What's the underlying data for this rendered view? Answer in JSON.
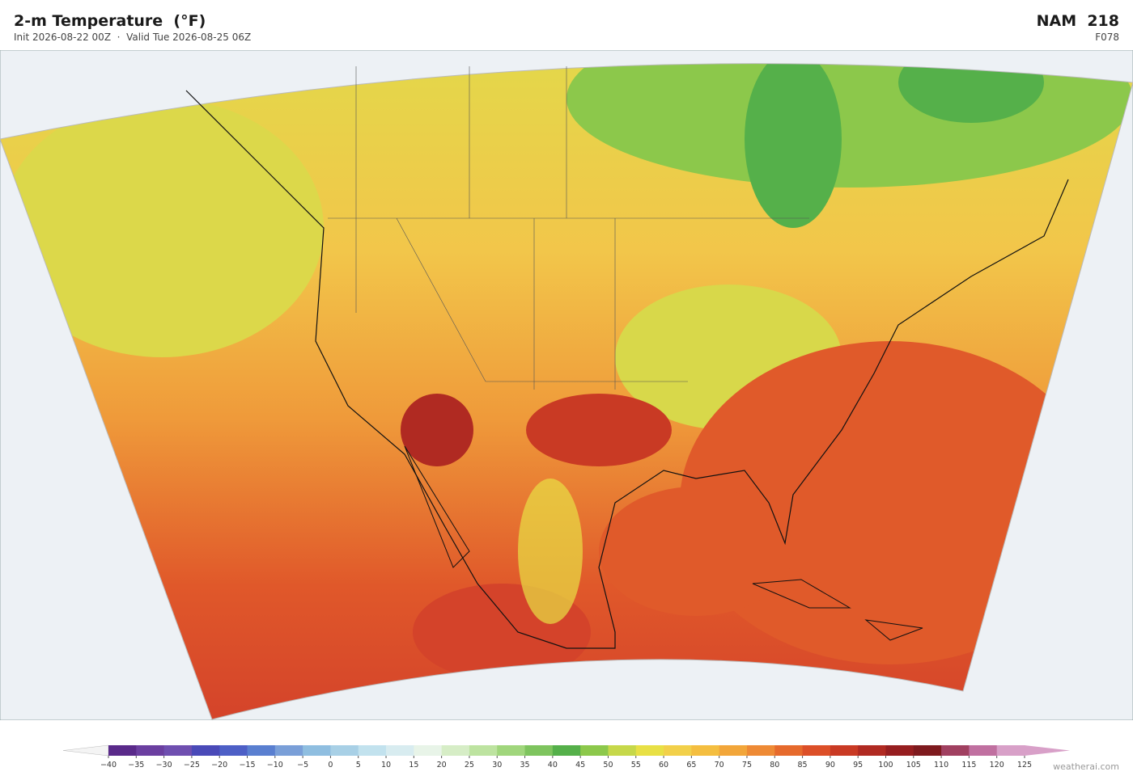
{
  "header": {
    "title": "2-m Temperature  (°F)",
    "subtitle": "Init 2026-08-22 00Z  ·  Valid Tue 2026-08-25 06Z",
    "model": "NAM  218",
    "forecast_hour": "F078"
  },
  "colorbar": {
    "ticks": [
      "−40",
      "−35",
      "−30",
      "−25",
      "−20",
      "−15",
      "−10",
      "−5",
      "0",
      "5",
      "10",
      "15",
      "20",
      "25",
      "30",
      "35",
      "40",
      "45",
      "50",
      "55",
      "60",
      "65",
      "70",
      "75",
      "80",
      "85",
      "90",
      "95",
      "100",
      "105",
      "110",
      "115",
      "120",
      "125"
    ],
    "colors": [
      "#5a2a8a",
      "#6b3fa0",
      "#6f4fb0",
      "#4a4ab8",
      "#4d5fc6",
      "#5a7fd0",
      "#7a9fd8",
      "#8fbee0",
      "#a8d0e6",
      "#c2e2ee",
      "#d8ecf0",
      "#e8f4e8",
      "#d6edc6",
      "#bde3a0",
      "#a0d67c",
      "#7ec45e",
      "#55b04a",
      "#8cc84b",
      "#c6d84a",
      "#e8e045",
      "#f2d04a",
      "#f4be40",
      "#f2a63a",
      "#ee8a35",
      "#e66a2c",
      "#dc4f28",
      "#c93a24",
      "#b02a22",
      "#961e20",
      "#7e1a1e",
      "#a04060",
      "#c070a0",
      "#d8a0c8"
    ],
    "under_color": "#f4f4f4",
    "over_color": "#d8a0c8"
  },
  "credit": "weatherai.com"
}
